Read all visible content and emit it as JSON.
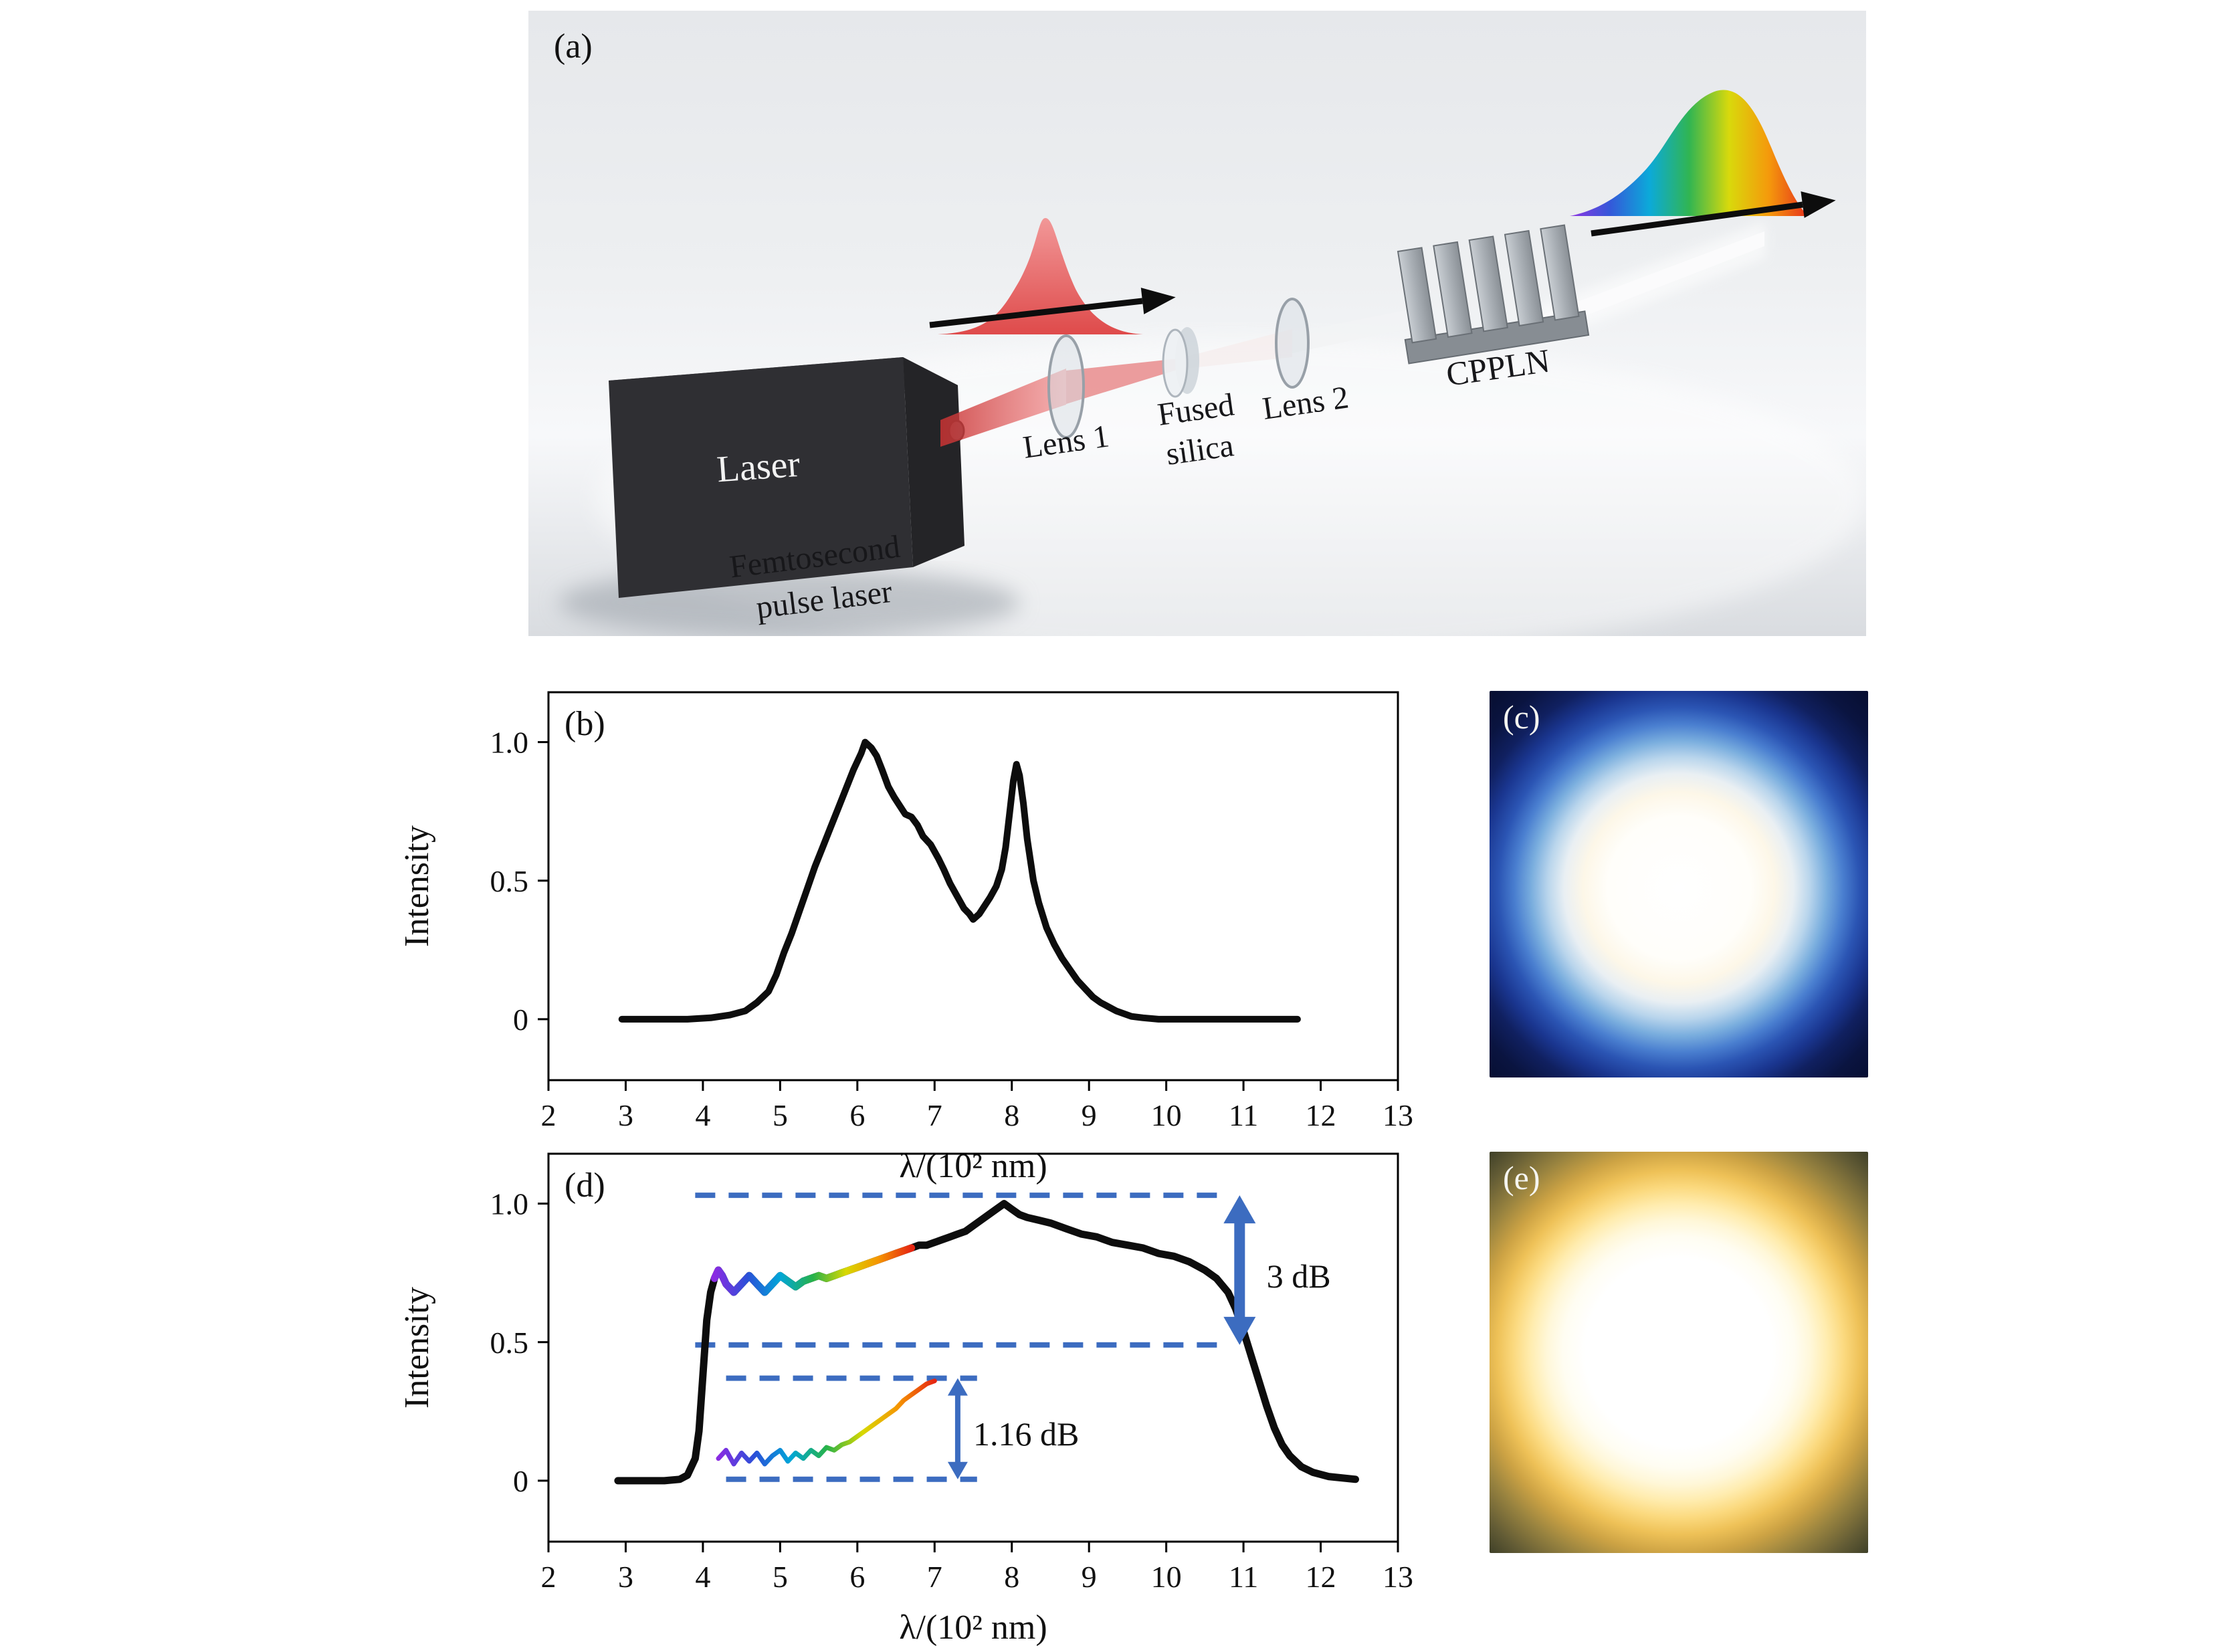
{
  "panel_a": {
    "label": "(a)",
    "laser_label": "Laser",
    "lens1_label": "Lens 1",
    "fused_line1": "Fused",
    "fused_line2": "silica",
    "lens2_label": "Lens 2",
    "cppln_label": "CPPLN",
    "femto_line1": "Femtosecond",
    "femto_line2": "pulse laser"
  },
  "panel_c": {
    "label": "(c)"
  },
  "panel_e": {
    "label": "(e)"
  },
  "rainbow_colors": [
    "#8a2be2",
    "#2b50d8",
    "#00a6d8",
    "#27b24a",
    "#d8d800",
    "#f59500",
    "#e62612"
  ],
  "chart_data": [
    {
      "id": "b",
      "type": "line",
      "panel_label": "(b)",
      "xlabel": "λ/(10² nm)",
      "ylabel": "Intensity",
      "xlim": [
        2,
        13
      ],
      "ylim": [
        -0.22,
        1.18
      ],
      "xticks": [
        2,
        3,
        4,
        5,
        6,
        7,
        8,
        9,
        10,
        11,
        12,
        13
      ],
      "yticks": [
        0,
        0.5,
        1.0
      ],
      "ytick_labels": [
        "0",
        "0.5",
        "1.0"
      ],
      "grid": false,
      "legend": "none",
      "series": [
        {
          "name": "spectrum-after-fused-silica",
          "color": "#0d0d0d",
          "width": 10,
          "x": [
            2.95,
            3.2,
            3.5,
            3.8,
            4.1,
            4.35,
            4.55,
            4.7,
            4.85,
            4.95,
            5.05,
            5.15,
            5.25,
            5.35,
            5.45,
            5.55,
            5.65,
            5.75,
            5.85,
            5.95,
            6.05,
            6.1,
            6.18,
            6.25,
            6.32,
            6.4,
            6.48,
            6.55,
            6.62,
            6.7,
            6.78,
            6.85,
            6.95,
            7.05,
            7.12,
            7.2,
            7.3,
            7.38,
            7.45,
            7.5,
            7.58,
            7.65,
            7.72,
            7.8,
            7.87,
            7.92,
            7.97,
            8.02,
            8.06,
            8.1,
            8.15,
            8.2,
            8.28,
            8.35,
            8.45,
            8.55,
            8.65,
            8.75,
            8.85,
            8.95,
            9.05,
            9.15,
            9.25,
            9.35,
            9.45,
            9.55,
            9.7,
            9.9,
            10.2,
            10.6,
            11.0,
            11.4,
            11.7
          ],
          "y": [
            0,
            0,
            0,
            0,
            0.005,
            0.015,
            0.03,
            0.06,
            0.1,
            0.16,
            0.24,
            0.31,
            0.39,
            0.47,
            0.55,
            0.62,
            0.69,
            0.76,
            0.83,
            0.9,
            0.96,
            1.0,
            0.98,
            0.95,
            0.9,
            0.84,
            0.8,
            0.77,
            0.74,
            0.73,
            0.7,
            0.66,
            0.63,
            0.58,
            0.54,
            0.49,
            0.44,
            0.4,
            0.38,
            0.36,
            0.38,
            0.41,
            0.44,
            0.48,
            0.54,
            0.62,
            0.74,
            0.86,
            0.92,
            0.88,
            0.78,
            0.65,
            0.5,
            0.42,
            0.33,
            0.27,
            0.22,
            0.18,
            0.14,
            0.11,
            0.08,
            0.06,
            0.045,
            0.03,
            0.02,
            0.01,
            0.005,
            0,
            0,
            0,
            0,
            0,
            0
          ]
        }
      ]
    },
    {
      "id": "d",
      "type": "line",
      "panel_label": "(d)",
      "xlabel": "λ/(10² nm)",
      "ylabel": "Intensity",
      "xlim": [
        2,
        13
      ],
      "ylim": [
        -0.22,
        1.18
      ],
      "xticks": [
        2,
        3,
        4,
        5,
        6,
        7,
        8,
        9,
        10,
        11,
        12,
        13
      ],
      "yticks": [
        0,
        0.5,
        1.0
      ],
      "ytick_labels": [
        "0",
        "0.5",
        "1.0"
      ],
      "grid": false,
      "legend": "none",
      "annotation_color": "#3c6cc0",
      "series": [
        {
          "name": "supercontinuum-after-cppln",
          "color": "#0d0d0d",
          "width": 11,
          "x": [
            2.9,
            3.2,
            3.5,
            3.7,
            3.8,
            3.9,
            3.95,
            4.0,
            4.05,
            4.1,
            4.15,
            4.2,
            4.25,
            4.3,
            4.4,
            4.5,
            4.6,
            4.7,
            4.8,
            4.9,
            5.0,
            5.1,
            5.2,
            5.3,
            5.4,
            5.5,
            5.6,
            5.7,
            5.8,
            5.9,
            6.0,
            6.1,
            6.2,
            6.3,
            6.4,
            6.5,
            6.6,
            6.7,
            6.8,
            6.9,
            7.0,
            7.1,
            7.2,
            7.3,
            7.4,
            7.5,
            7.6,
            7.7,
            7.8,
            7.9,
            8.0,
            8.1,
            8.2,
            8.35,
            8.5,
            8.7,
            8.9,
            9.1,
            9.3,
            9.5,
            9.7,
            9.9,
            10.1,
            10.3,
            10.5,
            10.65,
            10.8,
            10.9,
            11.0,
            11.1,
            11.2,
            11.3,
            11.4,
            11.5,
            11.6,
            11.75,
            11.9,
            12.1,
            12.45
          ],
          "y": [
            0,
            0,
            0,
            0.005,
            0.02,
            0.08,
            0.18,
            0.38,
            0.58,
            0.68,
            0.73,
            0.76,
            0.74,
            0.71,
            0.68,
            0.71,
            0.74,
            0.71,
            0.68,
            0.71,
            0.74,
            0.72,
            0.7,
            0.72,
            0.73,
            0.74,
            0.73,
            0.74,
            0.75,
            0.76,
            0.77,
            0.78,
            0.79,
            0.8,
            0.81,
            0.82,
            0.83,
            0.84,
            0.85,
            0.85,
            0.86,
            0.87,
            0.88,
            0.89,
            0.9,
            0.92,
            0.94,
            0.96,
            0.98,
            1.0,
            0.98,
            0.96,
            0.95,
            0.94,
            0.93,
            0.91,
            0.89,
            0.88,
            0.86,
            0.85,
            0.84,
            0.82,
            0.81,
            0.79,
            0.76,
            0.73,
            0.68,
            0.62,
            0.54,
            0.45,
            0.36,
            0.27,
            0.19,
            0.13,
            0.09,
            0.05,
            0.03,
            0.015,
            0.005
          ]
        },
        {
          "name": "visible-rainbow-segment",
          "gradient": "rainbow",
          "width": 11,
          "x": [
            4.15,
            4.2,
            4.25,
            4.3,
            4.4,
            4.5,
            4.6,
            4.7,
            4.8,
            4.9,
            5.0,
            5.1,
            5.2,
            5.3,
            5.4,
            5.5,
            5.6,
            5.7,
            5.8,
            5.9,
            6.0,
            6.1,
            6.2,
            6.3,
            6.4,
            6.5,
            6.6,
            6.7
          ],
          "y": [
            0.73,
            0.76,
            0.74,
            0.71,
            0.68,
            0.71,
            0.74,
            0.71,
            0.68,
            0.71,
            0.74,
            0.72,
            0.7,
            0.72,
            0.73,
            0.74,
            0.73,
            0.74,
            0.75,
            0.76,
            0.77,
            0.78,
            0.79,
            0.8,
            0.81,
            0.82,
            0.83,
            0.84
          ]
        },
        {
          "name": "inset-visible-spectrum",
          "gradient": "rainbow",
          "width": 7,
          "x": [
            4.2,
            4.3,
            4.4,
            4.5,
            4.6,
            4.7,
            4.8,
            4.9,
            5.0,
            5.1,
            5.2,
            5.3,
            5.4,
            5.5,
            5.6,
            5.7,
            5.8,
            5.9,
            6.0,
            6.1,
            6.2,
            6.3,
            6.4,
            6.5,
            6.6,
            6.7,
            6.8,
            6.9,
            7.0
          ],
          "y": [
            0.08,
            0.11,
            0.06,
            0.1,
            0.07,
            0.1,
            0.06,
            0.09,
            0.11,
            0.07,
            0.1,
            0.08,
            0.11,
            0.09,
            0.12,
            0.11,
            0.13,
            0.14,
            0.16,
            0.18,
            0.2,
            0.22,
            0.24,
            0.26,
            0.29,
            0.31,
            0.33,
            0.35,
            0.36
          ]
        }
      ],
      "dashes": [
        {
          "y": 1.03,
          "x1": 3.9,
          "x2": 10.7
        },
        {
          "y": 0.49,
          "x1": 3.9,
          "x2": 10.7
        },
        {
          "y": 0.37,
          "x1": 4.3,
          "x2": 7.55
        },
        {
          "y": 0.005,
          "x1": 4.3,
          "x2": 7.55
        }
      ],
      "arrows": [
        {
          "x": 10.95,
          "y1": 1.03,
          "y2": 0.49,
          "bold": true
        },
        {
          "x": 7.3,
          "y1": 0.37,
          "y2": 0.005,
          "bold": false
        }
      ],
      "labels": [
        {
          "text": "3 dB",
          "x": 11.3,
          "y": 0.74
        },
        {
          "text": "1.16 dB",
          "x": 7.5,
          "y": 0.17
        }
      ]
    }
  ]
}
